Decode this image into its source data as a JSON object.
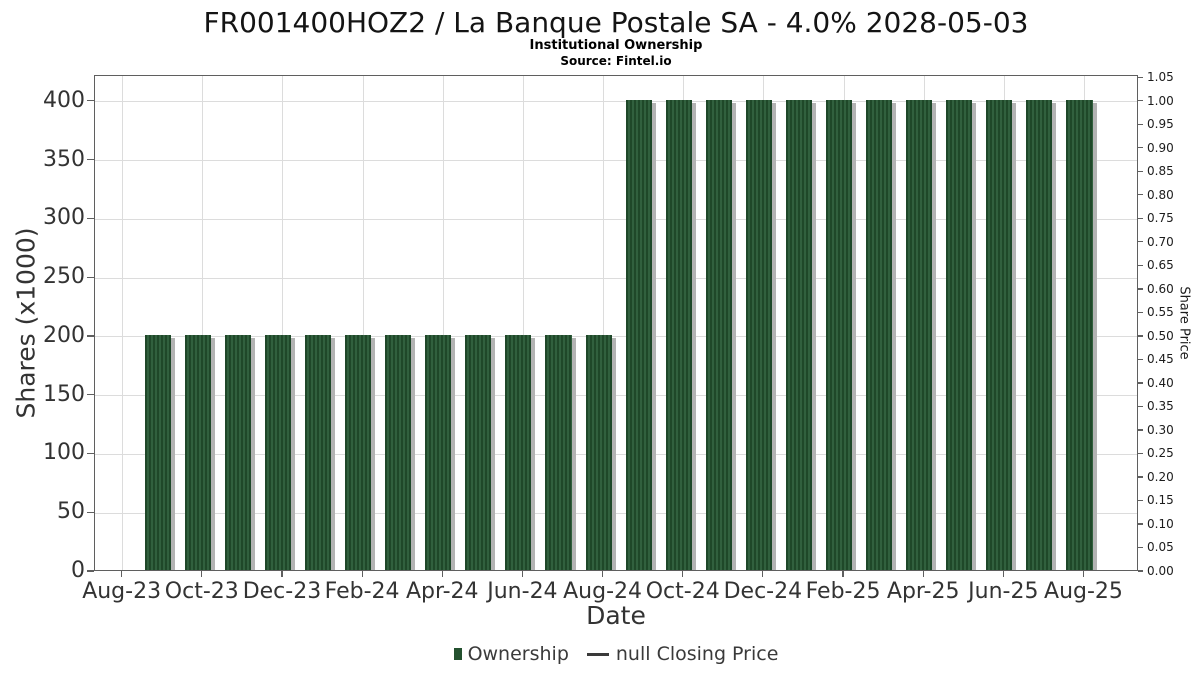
{
  "chart_data": {
    "type": "bar",
    "title": "FR001400HOZ2 / La Banque Postale SA - 4.0% 2028-05-03",
    "subtitle": "Institutional Ownership",
    "source": "Source: Fintel.io",
    "xlabel": "Date",
    "ylabel": "Shares (x1000)",
    "ylabel_right": "Share Price",
    "x": [
      "Sep-23",
      "Oct-23",
      "Nov-23",
      "Dec-23",
      "Jan-24",
      "Feb-24",
      "Mar-24",
      "Apr-24",
      "May-24",
      "Jun-24",
      "Jul-24",
      "Aug-24",
      "Sep-24",
      "Oct-24",
      "Nov-24",
      "Dec-24",
      "Jan-25",
      "Feb-25",
      "Mar-25",
      "Apr-25",
      "May-25",
      "Jun-25",
      "Jul-25",
      "Aug-25"
    ],
    "series": [
      {
        "name": "Ownership",
        "units": "shares x1000",
        "values": [
          200,
          200,
          200,
          200,
          200,
          200,
          200,
          200,
          200,
          200,
          200,
          200,
          400,
          400,
          400,
          400,
          400,
          400,
          400,
          400,
          400,
          400,
          400,
          400
        ]
      }
    ],
    "price_series": {
      "name": "null Closing Price",
      "values": []
    },
    "x_tick_labels": [
      "Aug-23",
      "Oct-23",
      "Dec-23",
      "Feb-24",
      "Apr-24",
      "Jun-24",
      "Aug-24",
      "Oct-24",
      "Dec-24",
      "Feb-25",
      "Apr-25",
      "Jun-25",
      "Aug-25"
    ],
    "y_ticks_left": [
      0,
      50,
      100,
      150,
      200,
      250,
      300,
      350,
      400
    ],
    "y_tick_labels_right": [
      "0.00",
      "0.05",
      "0.10",
      "0.15",
      "0.20",
      "0.25",
      "0.30",
      "0.35",
      "0.40",
      "0.45",
      "0.50",
      "0.55",
      "0.60",
      "0.65",
      "0.70",
      "0.75",
      "0.80",
      "0.85",
      "0.90",
      "0.95",
      "1.00",
      "1.05"
    ],
    "ylim_left": [
      0,
      422
    ],
    "ylim_right": [
      0,
      1.055
    ],
    "x_range_months": [
      -0.69,
      25.36
    ],
    "bar_width_months": 0.65,
    "grid": true,
    "legend_position": "bottom",
    "legend_entries": [
      {
        "marker": "green-square",
        "label": "Ownership"
      },
      {
        "marker": "line",
        "label": "null Closing Price"
      }
    ],
    "colors": {
      "bar": "#1f4829",
      "bar_stripe": "#31603e",
      "bar_shadow": "#b3b3b3",
      "grid": "#dcdcdc",
      "frame": "#5f5f5f",
      "tick_text": "#333333",
      "title_text": "#141414"
    }
  }
}
